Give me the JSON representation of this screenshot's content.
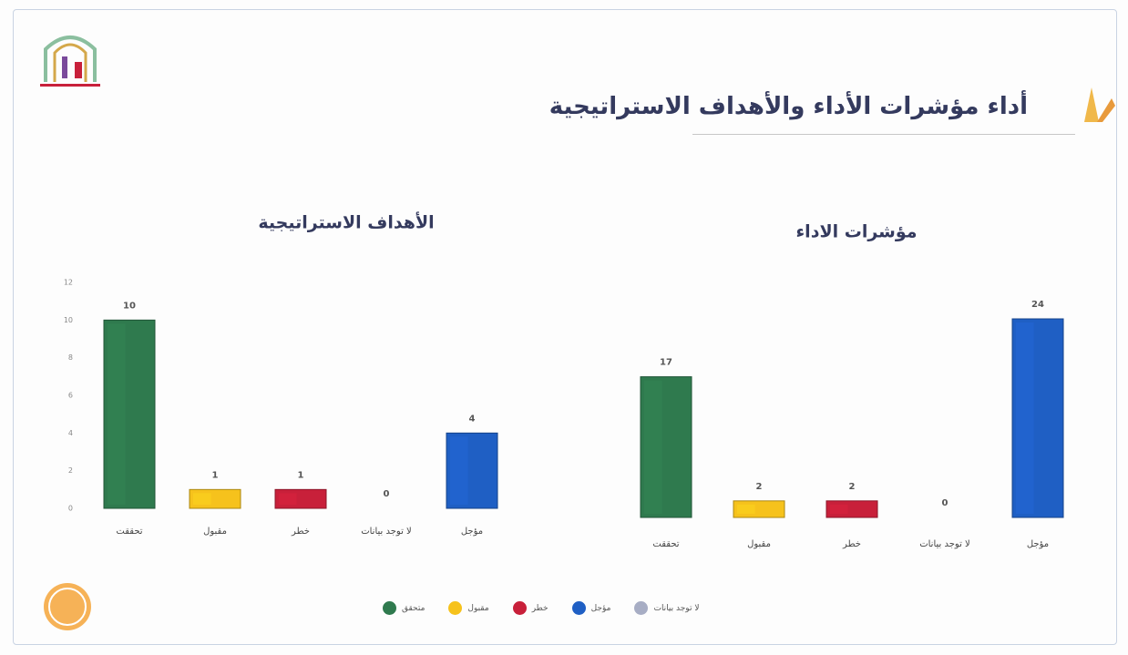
{
  "title": "أداء مؤشرات الأداء والأهداف الاستراتيجية",
  "legend": [
    {
      "name": "متحقق",
      "color": "#2f7a4e"
    },
    {
      "name": "مقبول",
      "color": "#f6c21c"
    },
    {
      "name": "خطر",
      "color": "#c8203a"
    },
    {
      "name": "مؤجل",
      "color": "#1f5fc4"
    },
    {
      "name": "لا توجد بيانات",
      "color": "#a7adc4"
    }
  ],
  "chart_data": [
    {
      "type": "bar",
      "title": "الأهداف الاستراتيجية",
      "categories": [
        "تحققت",
        "مقبول",
        "خطر",
        "لا توجد بيانات",
        "مؤجل"
      ],
      "values": [
        10,
        1,
        1,
        0,
        4
      ],
      "colors": [
        "#2f7a4e",
        "#f6c21c",
        "#c8203a",
        "#a7adc4",
        "#1f5fc4"
      ],
      "ylim": [
        0,
        12
      ],
      "yticks": [
        0,
        2,
        4,
        6,
        8,
        10,
        12
      ]
    },
    {
      "type": "bar",
      "title": "مؤشرات الاداء",
      "categories": [
        "تحققت",
        "مقبول",
        "خطر",
        "لا توجد بيانات",
        "مؤجل"
      ],
      "values": [
        17,
        2,
        2,
        0,
        24
      ],
      "colors": [
        "#2f7a4e",
        "#f6c21c",
        "#c8203a",
        "#a7adc4",
        "#1f5fc4"
      ]
    }
  ]
}
